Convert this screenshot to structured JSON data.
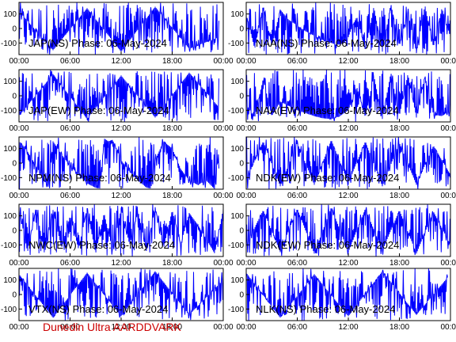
{
  "footer": {
    "text": "Dunedin Ultra AARDDVARK",
    "color": "#cc0000"
  },
  "style": {
    "trace_color": "#0000ff",
    "axis_color": "#000000",
    "background": "#ffffff"
  },
  "chart_data": [
    {
      "type": "line",
      "title": "JAP(NS) Phase: 06-May-2024",
      "xticks": [
        "00:00",
        "06:00",
        "12:00",
        "18:00",
        "00:00"
      ],
      "xlim_hours": [
        0,
        24
      ],
      "yticks": [
        100,
        0,
        -100
      ],
      "ylim": [
        -180,
        180
      ],
      "series": [
        {
          "x": [
            0,
            4,
            8,
            12,
            16,
            20,
            23.5
          ],
          "y": [
            120,
            -150,
            140,
            -160,
            150,
            -140,
            -60
          ]
        }
      ]
    },
    {
      "type": "line",
      "title": "NAA(NS) Phase: 06-May-2024",
      "xticks": [
        "00:00",
        "06:00",
        "12:00",
        "18:00",
        "00:00"
      ],
      "xlim_hours": [
        0,
        24
      ],
      "yticks": [
        100,
        0,
        -100
      ],
      "ylim": [
        -180,
        180
      ],
      "series": [
        {
          "x": [
            0,
            1,
            2,
            3,
            4,
            5,
            6,
            7,
            8,
            9,
            10,
            10.5,
            11,
            11.5,
            12,
            12.5,
            13,
            14,
            15,
            16,
            17,
            18,
            19,
            20,
            21,
            22,
            23,
            24
          ],
          "y": [
            100,
            -140,
            160,
            -120,
            130,
            60,
            20,
            -20,
            -50,
            -80,
            -100,
            -110,
            -110,
            -100,
            -60,
            20,
            80,
            -150,
            150,
            -160,
            170,
            -120,
            110,
            -170,
            160,
            -130,
            140,
            -60
          ]
        }
      ]
    },
    {
      "type": "line",
      "title": "JAP(EW) Phase: 06-May-2024",
      "xticks": [
        "00:00",
        "06:00",
        "12:00",
        "18:00",
        "00:00"
      ],
      "xlim_hours": [
        0,
        24
      ],
      "yticks": [
        100,
        0,
        -100
      ],
      "ylim": [
        -180,
        180
      ],
      "series": [
        {
          "x": [
            0,
            4,
            8,
            12,
            16,
            20,
            23.5
          ],
          "y": [
            -140,
            150,
            -160,
            140,
            -150,
            160,
            -80
          ]
        }
      ]
    },
    {
      "type": "line",
      "title": "NAA(EW) Phase: 06-May-2024",
      "xticks": [
        "00:00",
        "06:00",
        "12:00",
        "18:00",
        "00:00"
      ],
      "xlim_hours": [
        0,
        24
      ],
      "yticks": [
        100,
        0,
        -100
      ],
      "ylim": [
        -180,
        180
      ],
      "series": [
        {
          "x": [
            0,
            1,
            2,
            3,
            4,
            5,
            6,
            7,
            8,
            9,
            10,
            11,
            12,
            13,
            14,
            15,
            16,
            17,
            18,
            19,
            20,
            21,
            22,
            23,
            24
          ],
          "y": [
            -60,
            -150,
            120,
            -140,
            -40,
            -70,
            -100,
            -120,
            -140,
            -155,
            -160,
            -140,
            -100,
            60,
            -150,
            140,
            -160,
            160,
            -140,
            150,
            -150,
            140,
            -130,
            -140,
            -100
          ]
        }
      ]
    },
    {
      "type": "line",
      "title": "NPM(NS) Phase: 06-May-2024",
      "xticks": [
        "00:00",
        "06:00",
        "12:00",
        "18:00",
        "00:00"
      ],
      "xlim_hours": [
        0,
        24
      ],
      "yticks": [
        100,
        0,
        -100
      ],
      "ylim": [
        -180,
        180
      ],
      "series": [
        {
          "x": [
            0,
            0.5,
            1,
            2,
            3,
            3.5,
            4,
            5,
            6,
            7,
            8,
            9,
            9.5,
            10,
            10.5,
            11,
            12,
            13,
            14,
            15,
            15.5,
            16,
            17,
            18,
            19,
            20,
            21,
            22,
            23,
            23.5
          ],
          "y": [
            150,
            120,
            80,
            -20,
            -120,
            -170,
            150,
            60,
            -20,
            -80,
            -140,
            -170,
            -175,
            170,
            150,
            160,
            20,
            -60,
            -120,
            -170,
            -175,
            20,
            150,
            100,
            -40,
            -120,
            -150,
            -120,
            -180,
            100
          ]
        }
      ]
    },
    {
      "type": "line",
      "title": "NDK(EW) Phase: 06-May-2024",
      "xticks": [
        "00:00",
        "06:00",
        "12:00",
        "18:00",
        "00:00"
      ],
      "xlim_hours": [
        0,
        24
      ],
      "yticks": [
        100,
        0,
        -100
      ],
      "ylim": [
        -180,
        180
      ],
      "series": [
        {
          "x": [
            0,
            2,
            4,
            6,
            8,
            10,
            12,
            14,
            16,
            18,
            20,
            22,
            24
          ],
          "y": [
            -120,
            150,
            -160,
            140,
            -150,
            160,
            -140,
            150,
            -160,
            140,
            -150,
            120,
            -80
          ]
        }
      ]
    },
    {
      "type": "line",
      "title": "NWC(EW) Phase: 06-May-2024",
      "xticks": [
        "00:00",
        "06:00",
        "12:00",
        "18:00",
        "00:00"
      ],
      "xlim_hours": [
        0,
        24
      ],
      "yticks": [
        100,
        0,
        -100
      ],
      "ylim": [
        -180,
        180
      ],
      "series": [
        {
          "x": [
            0,
            1,
            2,
            3,
            4,
            5,
            6,
            7,
            8,
            9,
            10,
            11,
            12,
            13,
            14,
            15,
            16,
            17,
            18,
            19,
            20,
            21,
            22,
            23,
            24
          ],
          "y": [
            150,
            -150,
            160,
            -160,
            140,
            -120,
            100,
            -130,
            150,
            -160,
            120,
            -140,
            150,
            -100,
            130,
            -150,
            160,
            -120,
            140,
            -100,
            120,
            40,
            -60,
            -160,
            150
          ]
        }
      ]
    },
    {
      "type": "line",
      "title": "NDK(EW) Phase: 06-May-2024",
      "xticks": [
        "00:00",
        "06:00",
        "12:00",
        "18:00",
        "00:00"
      ],
      "xlim_hours": [
        0,
        24
      ],
      "yticks": [
        100,
        0,
        -100
      ],
      "ylim": [
        -180,
        180
      ],
      "series": [
        {
          "x": [
            0,
            2,
            4,
            6,
            8,
            10,
            12,
            14,
            16,
            18,
            20,
            22,
            24
          ],
          "y": [
            -100,
            140,
            -150,
            150,
            -160,
            160,
            -150,
            150,
            -140,
            140,
            -160,
            130,
            -100
          ]
        }
      ]
    },
    {
      "type": "line",
      "title": "VTX(NS) Phase: 06-May-2024",
      "xticks": [
        "00:00",
        "06:00",
        "12:00",
        "18:00",
        "00:00"
      ],
      "xlim_hours": [
        0,
        24
      ],
      "yticks": [
        100,
        0,
        -100
      ],
      "ylim": [
        -180,
        180
      ],
      "series": [
        {
          "x": [
            0,
            4,
            8,
            12,
            16,
            20,
            24
          ],
          "y": [
            140,
            -160,
            150,
            -150,
            160,
            -140,
            100
          ]
        }
      ]
    },
    {
      "type": "line",
      "title": "NLK(NS) Phase: 06-May-2024",
      "xticks": [
        "00:00",
        "06:00",
        "12:00",
        "18:00",
        "00:00"
      ],
      "xlim_hours": [
        0,
        24
      ],
      "yticks": [
        100,
        0,
        -100
      ],
      "ylim": [
        -180,
        180
      ],
      "series": [
        {
          "x": [
            0,
            4,
            8,
            12,
            16,
            20,
            23.7
          ],
          "y": [
            150,
            -160,
            140,
            -150,
            160,
            -140,
            120
          ]
        }
      ]
    }
  ]
}
